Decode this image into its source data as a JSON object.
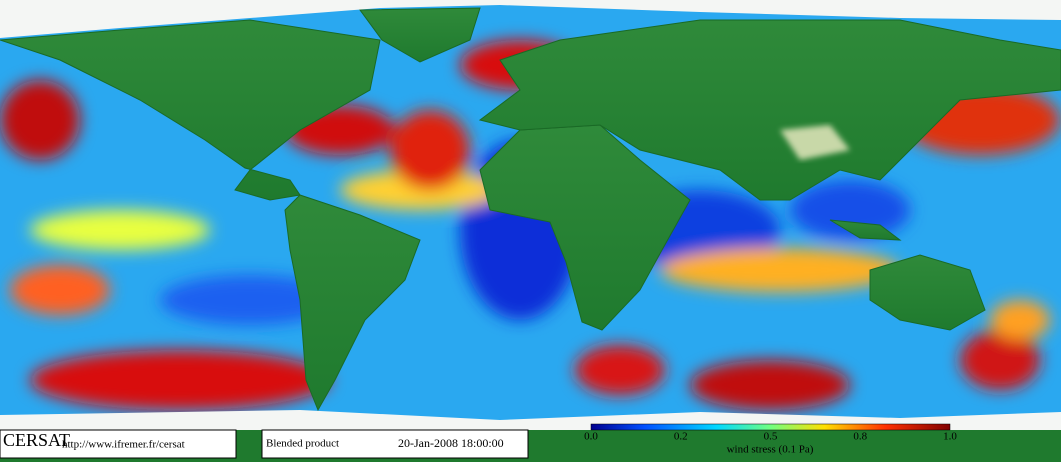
{
  "footer": {
    "logo": "CERSAT",
    "url": "http://www.ifremer.fr/cersat",
    "product": "Blended product",
    "date": "20-Jan-2008 18:00:00",
    "colorbar": {
      "ticks": [
        "0.0",
        "0.2",
        "0.5",
        "0.8",
        "1.0"
      ],
      "label": "wind stress (0.1 Pa)"
    }
  }
}
